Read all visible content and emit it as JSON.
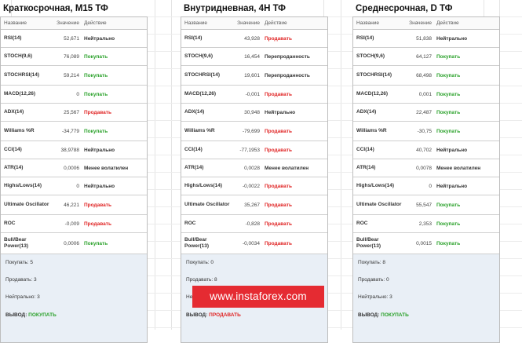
{
  "headers": {
    "name": "Название",
    "value": "Значение",
    "action": "Действие"
  },
  "colors": {
    "buy": "#2aa12a",
    "sell": "#e02525",
    "neutral": "#333333",
    "summary_bg": "#e9eff6",
    "watermark_bg": "#e52b32"
  },
  "watermark": "www.instaforex.com",
  "panels": [
    {
      "title": "Краткосрочная, М15 ТФ",
      "rows": [
        {
          "name": "RSI(14)",
          "value": "52,671",
          "action": "Нейтрально",
          "kind": "neutral"
        },
        {
          "name": "STOCH(9,6)",
          "value": "76,089",
          "action": "Покупать",
          "kind": "buy"
        },
        {
          "name": "STOCHRSI(14)",
          "value": "59,214",
          "action": "Покупать",
          "kind": "buy"
        },
        {
          "name": "MACD(12,26)",
          "value": "0",
          "action": "Покупать",
          "kind": "buy"
        },
        {
          "name": "ADX(14)",
          "value": "25,567",
          "action": "Продавать",
          "kind": "sell"
        },
        {
          "name": "Williams %R",
          "value": "-34,779",
          "action": "Покупать",
          "kind": "buy"
        },
        {
          "name": "CCI(14)",
          "value": "38,9788",
          "action": "Нейтрально",
          "kind": "neutral"
        },
        {
          "name": "ATR(14)",
          "value": "0,0006",
          "action": "Менее волатилен",
          "kind": "neutral"
        },
        {
          "name": "Highs/Lows(14)",
          "value": "0",
          "action": "Нейтрально",
          "kind": "neutral"
        },
        {
          "name": "Ultimate Oscillator",
          "value": "46,221",
          "action": "Продавать",
          "kind": "sell"
        },
        {
          "name": "ROC",
          "value": "-0,009",
          "action": "Продавать",
          "kind": "sell"
        },
        {
          "name": "Bull/Bear Power(13)",
          "value": "0,0006",
          "action": "Покупать",
          "kind": "buy"
        }
      ],
      "summary": {
        "buy": "Покупать: 5",
        "sell": "Продавать: 3",
        "neutral": "Нейтрально: 3",
        "verdict_label": "ВЫВОД:",
        "verdict": "ПОКУПАТЬ",
        "verdict_kind": "buy"
      }
    },
    {
      "title": "Внутридневная, 4Н ТФ",
      "rows": [
        {
          "name": "RSI(14)",
          "value": "43,928",
          "action": "Продавать",
          "kind": "sell"
        },
        {
          "name": "STOCH(9,6)",
          "value": "16,454",
          "action": "Перепроданность",
          "kind": "neutral"
        },
        {
          "name": "STOCHRSI(14)",
          "value": "19,601",
          "action": "Перепроданность",
          "kind": "neutral"
        },
        {
          "name": "MACD(12,26)",
          "value": "-0,001",
          "action": "Продавать",
          "kind": "sell"
        },
        {
          "name": "ADX(14)",
          "value": "30,948",
          "action": "Нейтрально",
          "kind": "neutral"
        },
        {
          "name": "Williams %R",
          "value": "-79,699",
          "action": "Продавать",
          "kind": "sell"
        },
        {
          "name": "CCI(14)",
          "value": "-77,1953",
          "action": "Продавать",
          "kind": "sell"
        },
        {
          "name": "ATR(14)",
          "value": "0,0028",
          "action": "Менее волатилен",
          "kind": "neutral"
        },
        {
          "name": "Highs/Lows(14)",
          "value": "-0,0022",
          "action": "Продавать",
          "kind": "sell"
        },
        {
          "name": "Ultimate Oscillator",
          "value": "35,267",
          "action": "Продавать",
          "kind": "sell"
        },
        {
          "name": "ROC",
          "value": "-0,828",
          "action": "Продавать",
          "kind": "sell"
        },
        {
          "name": "Bull/Bear Power(13)",
          "value": "-0,0034",
          "action": "Продавать",
          "kind": "sell"
        }
      ],
      "summary": {
        "buy": "Покупать: 0",
        "sell": "Продавать: 8",
        "neutral": "Нейтрально: 1",
        "verdict_label": "ВЫВОД:",
        "verdict": "ПРОДАВАТЬ",
        "verdict_kind": "sell"
      }
    },
    {
      "title": "Среднесрочная, D ТФ",
      "rows": [
        {
          "name": "RSI(14)",
          "value": "51,838",
          "action": "Нейтрально",
          "kind": "neutral"
        },
        {
          "name": "STOCH(9,6)",
          "value": "64,127",
          "action": "Покупать",
          "kind": "buy"
        },
        {
          "name": "STOCHRSI(14)",
          "value": "68,498",
          "action": "Покупать",
          "kind": "buy"
        },
        {
          "name": "MACD(12,26)",
          "value": "0,001",
          "action": "Покупать",
          "kind": "buy"
        },
        {
          "name": "ADX(14)",
          "value": "22,487",
          "action": "Покупать",
          "kind": "buy"
        },
        {
          "name": "Williams %R",
          "value": "-30,75",
          "action": "Покупать",
          "kind": "buy"
        },
        {
          "name": "CCI(14)",
          "value": "40,702",
          "action": "Нейтрально",
          "kind": "neutral"
        },
        {
          "name": "ATR(14)",
          "value": "0,0078",
          "action": "Менее волатилен",
          "kind": "neutral"
        },
        {
          "name": "Highs/Lows(14)",
          "value": "0",
          "action": "Нейтрально",
          "kind": "neutral"
        },
        {
          "name": "Ultimate Oscillator",
          "value": "55,547",
          "action": "Покупать",
          "kind": "buy"
        },
        {
          "name": "ROC",
          "value": "2,353",
          "action": "Покупать",
          "kind": "buy"
        },
        {
          "name": "Bull/Bear Power(13)",
          "value": "0,0015",
          "action": "Покупать",
          "kind": "buy"
        }
      ],
      "summary": {
        "buy": "Покупать: 8",
        "sell": "Продавать: 0",
        "neutral": "Нейтрально: 3",
        "verdict_label": "ВЫВОД:",
        "verdict": "ПОКУПАТЬ",
        "verdict_kind": "buy"
      }
    }
  ]
}
